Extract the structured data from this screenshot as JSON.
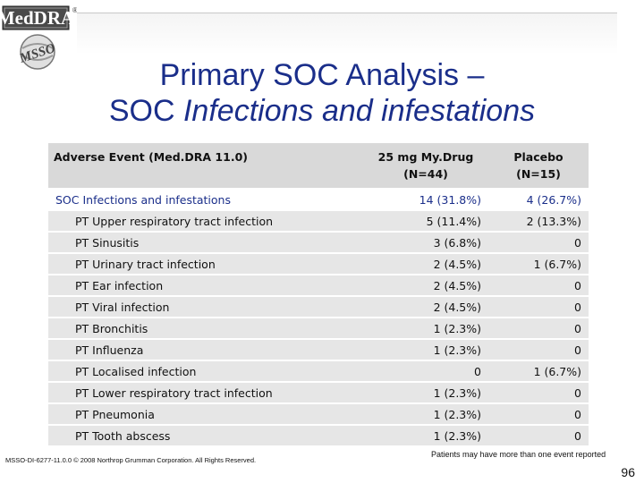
{
  "logo": {
    "brand_text": "MedDRA",
    "sub_text": "MSSO",
    "registered_mark": "®"
  },
  "title": {
    "line1": "Primary SOC Analysis –",
    "line2_prefix": "SOC ",
    "line2_italic": "Infections and infestations"
  },
  "table": {
    "headers": {
      "event": "Adverse Event (Med.DRA 11.0)",
      "drug_line1": "25 mg My.Drug",
      "drug_line2": "(N=44)",
      "placebo_line1": "Placebo",
      "placebo_line2": "(N=15)"
    },
    "rows": [
      {
        "label": "SOC Infections and infestations",
        "drug": "14 (31.8%)",
        "placebo": "4 (26.7%)"
      },
      {
        "label": "PT Upper respiratory tract infection",
        "drug": "5 (11.4%)",
        "placebo": "2 (13.3%)"
      },
      {
        "label": "PT Sinusitis",
        "drug": "3 (6.8%)",
        "placebo": "0"
      },
      {
        "label": "PT Urinary tract infection",
        "drug": "2 (4.5%)",
        "placebo": "1 (6.7%)"
      },
      {
        "label": "PT Ear infection",
        "drug": "2 (4.5%)",
        "placebo": "0"
      },
      {
        "label": "PT Viral infection",
        "drug": "2 (4.5%)",
        "placebo": "0"
      },
      {
        "label": "PT Bronchitis",
        "drug": "1 (2.3%)",
        "placebo": "0"
      },
      {
        "label": "PT Influenza",
        "drug": "1 (2.3%)",
        "placebo": "0"
      },
      {
        "label": "PT Localised infection",
        "drug": "0",
        "placebo": "1 (6.7%)"
      },
      {
        "label": "PT Lower respiratory tract infection",
        "drug": "1 (2.3%)",
        "placebo": "0"
      },
      {
        "label": "PT Pneumonia",
        "drug": "1 (2.3%)",
        "placebo": "0"
      },
      {
        "label": "PT Tooth abscess",
        "drug": "1 (2.3%)",
        "placebo": "0"
      }
    ]
  },
  "footer": {
    "copyright": "MSSO-DI-6277-11.0.0 © 2008 Northrop Grumman Corporation. All Rights Reserved.",
    "note": "Patients may have more than one event reported",
    "page_number": "96"
  }
}
